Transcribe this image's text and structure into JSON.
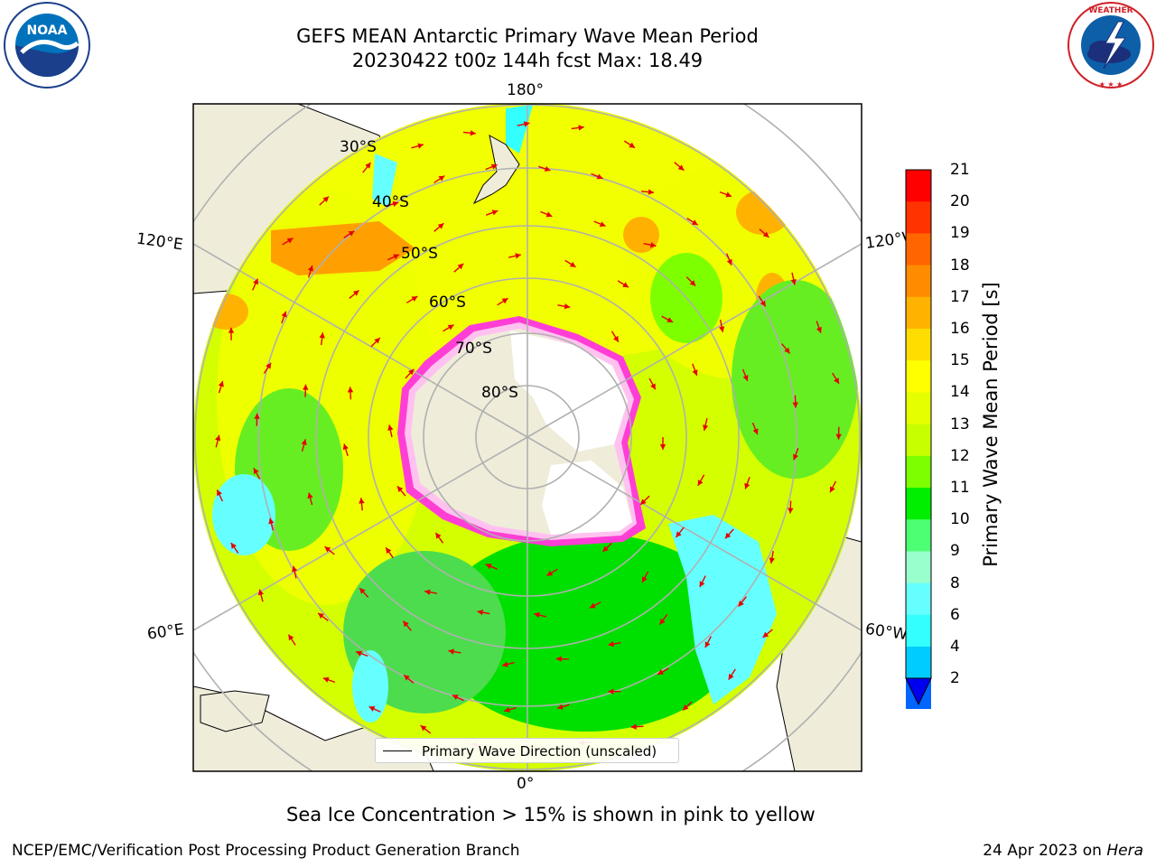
{
  "header": {
    "title_line1": "GEFS MEAN Antarctic Primary Wave Mean Period",
    "title_line2": "20230422 t00z 144h fcst   Max: 18.49"
  },
  "logos": {
    "left": "NOAA",
    "right": "NATIONAL WEATHER SERVICE"
  },
  "map": {
    "projection": "south-polar-stereographic",
    "longitude_labels": [
      "180°",
      "120°E",
      "120°W",
      "60°E",
      "60°W",
      "0°"
    ],
    "latitude_labels": [
      "30°S",
      "40°S",
      "50°S",
      "60°S",
      "70°S",
      "80°S"
    ],
    "icon": "red-direction-arrows"
  },
  "colorbar": {
    "label": "Primary Wave Mean Period [s]",
    "ticks": [
      "21",
      "20",
      "19",
      "18",
      "17",
      "16",
      "15",
      "14",
      "13",
      "12",
      "11",
      "10",
      "9",
      "8",
      "6",
      "4",
      "2"
    ],
    "colors": [
      "#ff0000",
      "#ff3300",
      "#ff6600",
      "#ff8c00",
      "#ffb300",
      "#ffdd00",
      "#ffff00",
      "#e6ff00",
      "#c8ff00",
      "#7dff00",
      "#00ee00",
      "#4dff73",
      "#99ffcc",
      "#66ffff",
      "#33ffff",
      "#00ccff",
      "#0066ff"
    ],
    "extend": "min"
  },
  "legend": {
    "label": "Primary Wave Direction (unscaled)"
  },
  "note": "Sea Ice Concentration > 15% is shown in pink to yellow",
  "footer": {
    "left": "NCEP/EMC/Verification Post Processing Product Generation Branch",
    "date": "24 Apr 2023 on ",
    "host": "Hera"
  }
}
